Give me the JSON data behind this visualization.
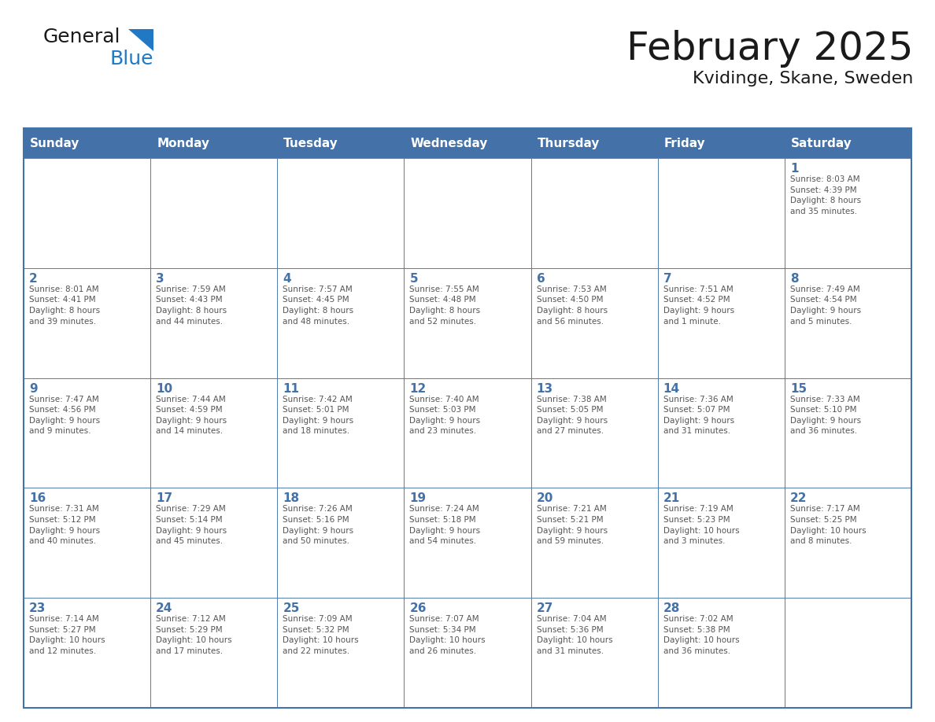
{
  "title": "February 2025",
  "subtitle": "Kvidinge, Skane, Sweden",
  "header_bg": "#4472a8",
  "header_text": "#ffffff",
  "cell_bg": "#ffffff",
  "border_color": "#4472a8",
  "row_line_color": "#4472a8",
  "day_names": [
    "Sunday",
    "Monday",
    "Tuesday",
    "Wednesday",
    "Thursday",
    "Friday",
    "Saturday"
  ],
  "title_color": "#1a1a1a",
  "subtitle_color": "#1a1a1a",
  "day_number_color": "#4472a8",
  "cell_text_color": "#555555",
  "logo_general_color": "#1a1a1a",
  "logo_blue_color": "#2178c4",
  "logo_triangle_color": "#2178c4",
  "weeks": [
    [
      {
        "day": "",
        "info": ""
      },
      {
        "day": "",
        "info": ""
      },
      {
        "day": "",
        "info": ""
      },
      {
        "day": "",
        "info": ""
      },
      {
        "day": "",
        "info": ""
      },
      {
        "day": "",
        "info": ""
      },
      {
        "day": "1",
        "info": "Sunrise: 8:03 AM\nSunset: 4:39 PM\nDaylight: 8 hours\nand 35 minutes."
      }
    ],
    [
      {
        "day": "2",
        "info": "Sunrise: 8:01 AM\nSunset: 4:41 PM\nDaylight: 8 hours\nand 39 minutes."
      },
      {
        "day": "3",
        "info": "Sunrise: 7:59 AM\nSunset: 4:43 PM\nDaylight: 8 hours\nand 44 minutes."
      },
      {
        "day": "4",
        "info": "Sunrise: 7:57 AM\nSunset: 4:45 PM\nDaylight: 8 hours\nand 48 minutes."
      },
      {
        "day": "5",
        "info": "Sunrise: 7:55 AM\nSunset: 4:48 PM\nDaylight: 8 hours\nand 52 minutes."
      },
      {
        "day": "6",
        "info": "Sunrise: 7:53 AM\nSunset: 4:50 PM\nDaylight: 8 hours\nand 56 minutes."
      },
      {
        "day": "7",
        "info": "Sunrise: 7:51 AM\nSunset: 4:52 PM\nDaylight: 9 hours\nand 1 minute."
      },
      {
        "day": "8",
        "info": "Sunrise: 7:49 AM\nSunset: 4:54 PM\nDaylight: 9 hours\nand 5 minutes."
      }
    ],
    [
      {
        "day": "9",
        "info": "Sunrise: 7:47 AM\nSunset: 4:56 PM\nDaylight: 9 hours\nand 9 minutes."
      },
      {
        "day": "10",
        "info": "Sunrise: 7:44 AM\nSunset: 4:59 PM\nDaylight: 9 hours\nand 14 minutes."
      },
      {
        "day": "11",
        "info": "Sunrise: 7:42 AM\nSunset: 5:01 PM\nDaylight: 9 hours\nand 18 minutes."
      },
      {
        "day": "12",
        "info": "Sunrise: 7:40 AM\nSunset: 5:03 PM\nDaylight: 9 hours\nand 23 minutes."
      },
      {
        "day": "13",
        "info": "Sunrise: 7:38 AM\nSunset: 5:05 PM\nDaylight: 9 hours\nand 27 minutes."
      },
      {
        "day": "14",
        "info": "Sunrise: 7:36 AM\nSunset: 5:07 PM\nDaylight: 9 hours\nand 31 minutes."
      },
      {
        "day": "15",
        "info": "Sunrise: 7:33 AM\nSunset: 5:10 PM\nDaylight: 9 hours\nand 36 minutes."
      }
    ],
    [
      {
        "day": "16",
        "info": "Sunrise: 7:31 AM\nSunset: 5:12 PM\nDaylight: 9 hours\nand 40 minutes."
      },
      {
        "day": "17",
        "info": "Sunrise: 7:29 AM\nSunset: 5:14 PM\nDaylight: 9 hours\nand 45 minutes."
      },
      {
        "day": "18",
        "info": "Sunrise: 7:26 AM\nSunset: 5:16 PM\nDaylight: 9 hours\nand 50 minutes."
      },
      {
        "day": "19",
        "info": "Sunrise: 7:24 AM\nSunset: 5:18 PM\nDaylight: 9 hours\nand 54 minutes."
      },
      {
        "day": "20",
        "info": "Sunrise: 7:21 AM\nSunset: 5:21 PM\nDaylight: 9 hours\nand 59 minutes."
      },
      {
        "day": "21",
        "info": "Sunrise: 7:19 AM\nSunset: 5:23 PM\nDaylight: 10 hours\nand 3 minutes."
      },
      {
        "day": "22",
        "info": "Sunrise: 7:17 AM\nSunset: 5:25 PM\nDaylight: 10 hours\nand 8 minutes."
      }
    ],
    [
      {
        "day": "23",
        "info": "Sunrise: 7:14 AM\nSunset: 5:27 PM\nDaylight: 10 hours\nand 12 minutes."
      },
      {
        "day": "24",
        "info": "Sunrise: 7:12 AM\nSunset: 5:29 PM\nDaylight: 10 hours\nand 17 minutes."
      },
      {
        "day": "25",
        "info": "Sunrise: 7:09 AM\nSunset: 5:32 PM\nDaylight: 10 hours\nand 22 minutes."
      },
      {
        "day": "26",
        "info": "Sunrise: 7:07 AM\nSunset: 5:34 PM\nDaylight: 10 hours\nand 26 minutes."
      },
      {
        "day": "27",
        "info": "Sunrise: 7:04 AM\nSunset: 5:36 PM\nDaylight: 10 hours\nand 31 minutes."
      },
      {
        "day": "28",
        "info": "Sunrise: 7:02 AM\nSunset: 5:38 PM\nDaylight: 10 hours\nand 36 minutes."
      },
      {
        "day": "",
        "info": ""
      }
    ]
  ]
}
